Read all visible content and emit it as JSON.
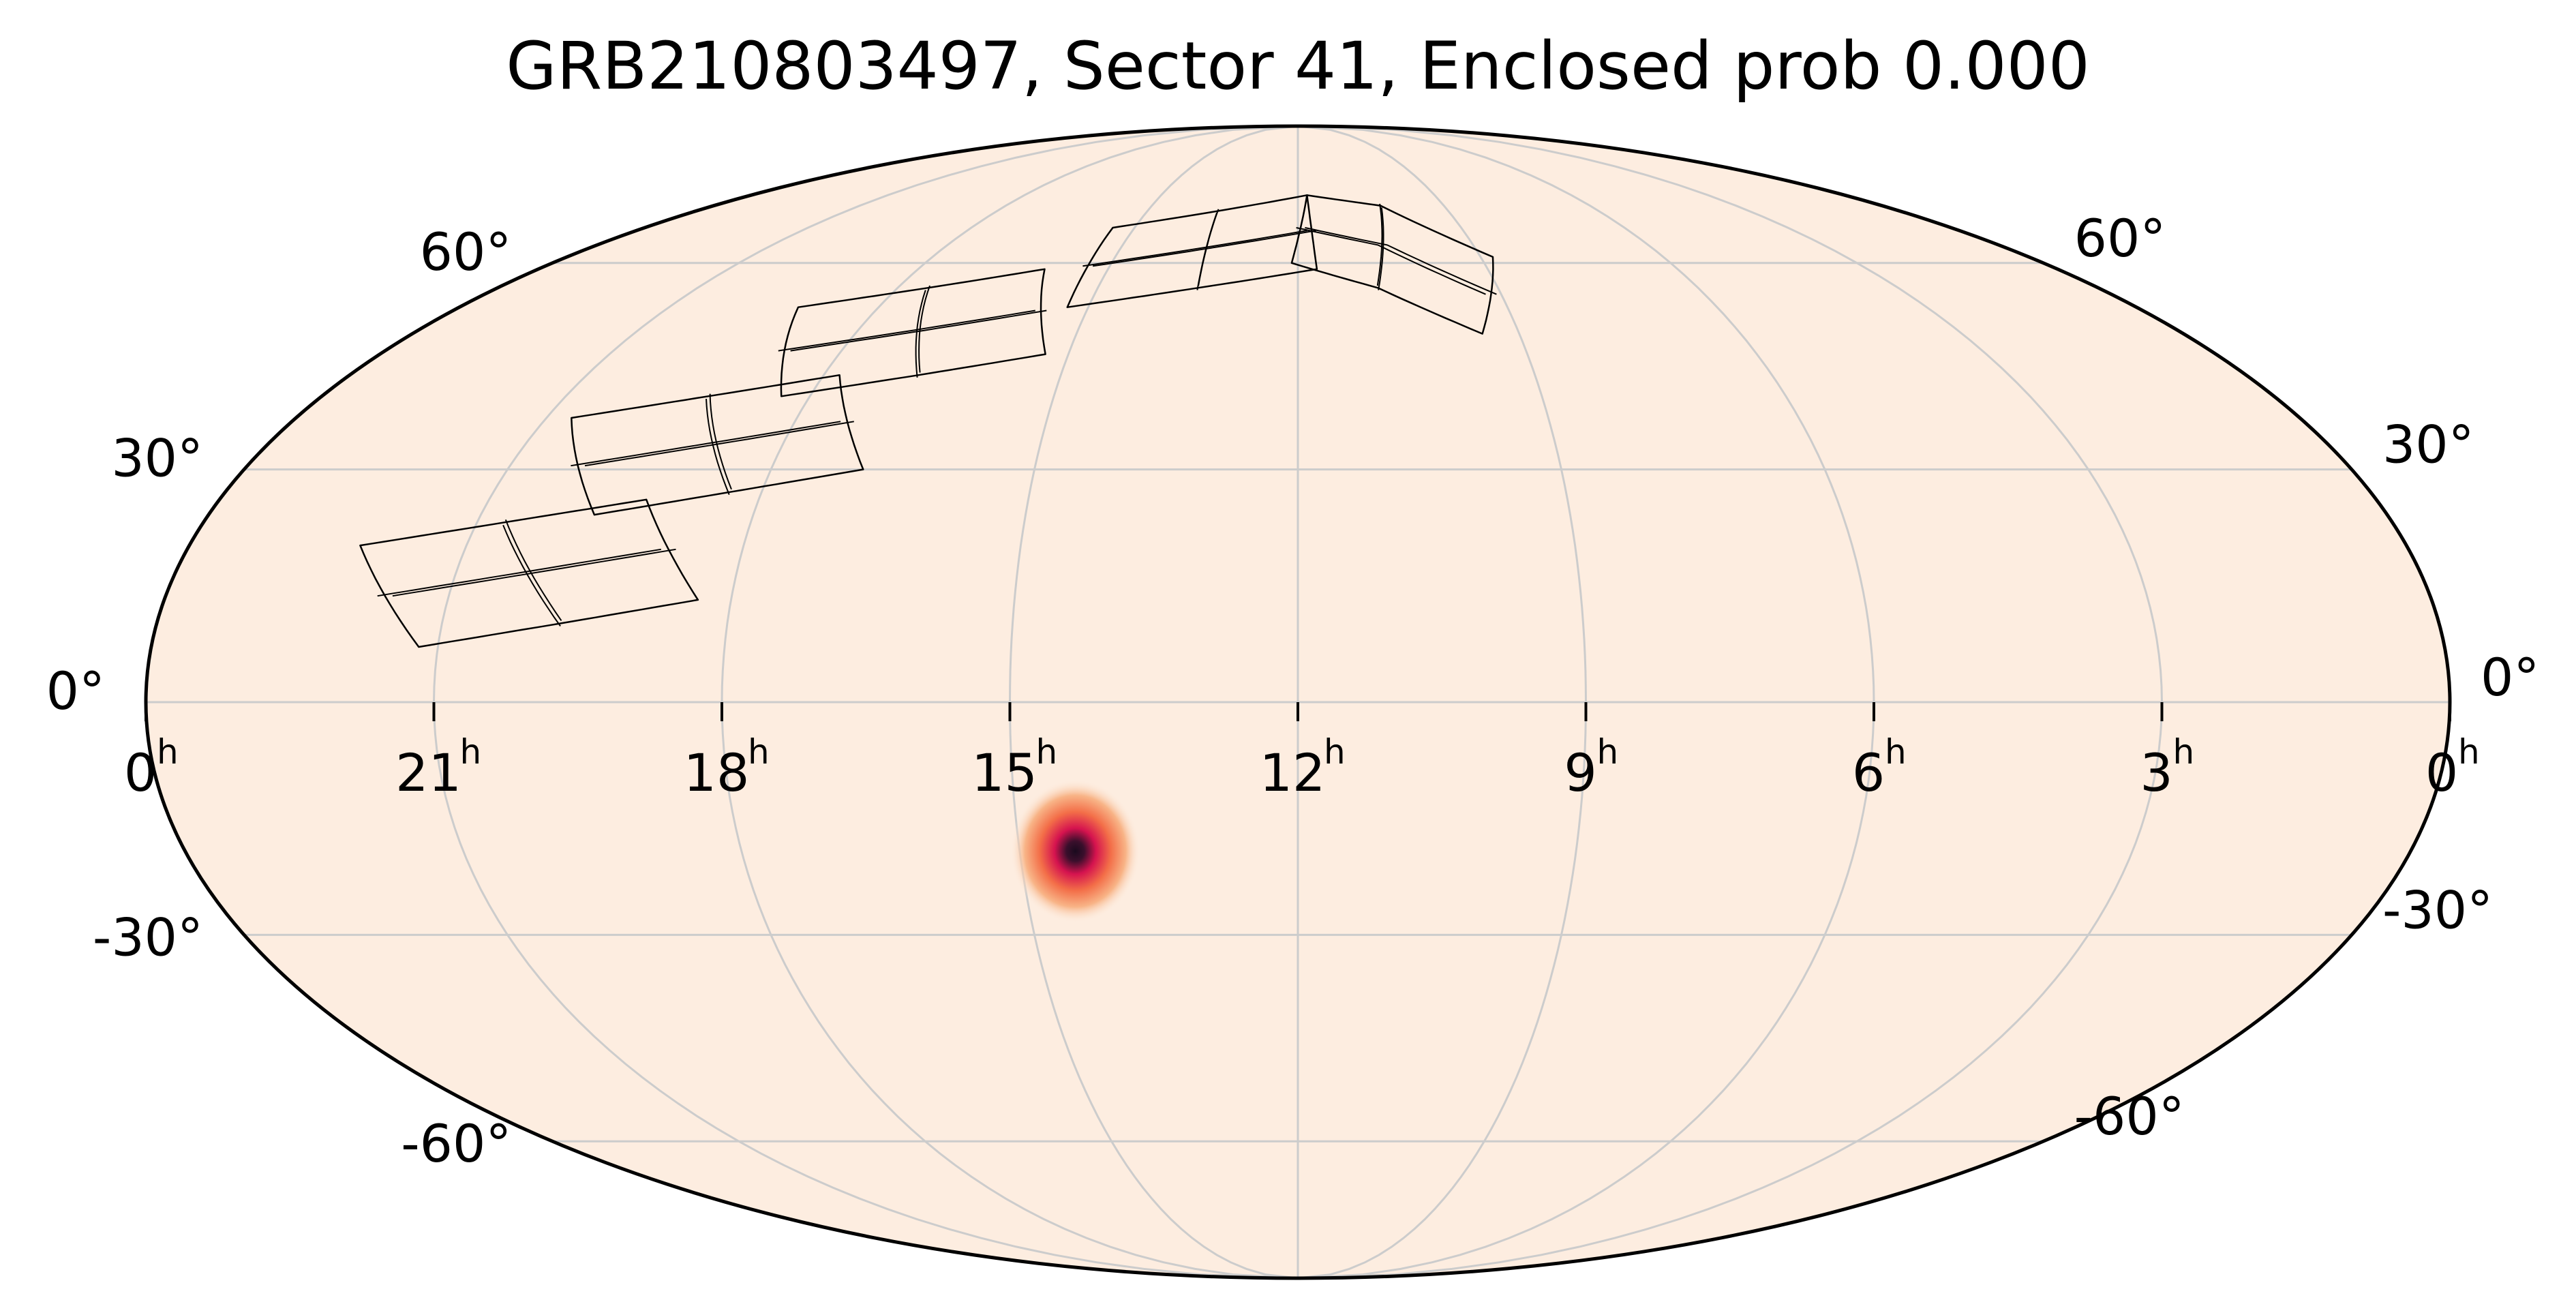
{
  "chart_data": {
    "type": "heatmap",
    "projection": "mollweide",
    "title": "GRB210803497, Sector 41, Enclosed prob 0.000",
    "ra_ticks": [
      {
        "hours": 24,
        "label": "0",
        "unit": "h"
      },
      {
        "hours": 21,
        "label": "21",
        "unit": "h"
      },
      {
        "hours": 18,
        "label": "18",
        "unit": "h"
      },
      {
        "hours": 15,
        "label": "15",
        "unit": "h"
      },
      {
        "hours": 12,
        "label": "12",
        "unit": "h"
      },
      {
        "hours": 9,
        "label": "9",
        "unit": "h"
      },
      {
        "hours": 6,
        "label": "6",
        "unit": "h"
      },
      {
        "hours": 3,
        "label": "3",
        "unit": "h"
      },
      {
        "hours": 0,
        "label": "0",
        "unit": "h"
      }
    ],
    "dec_ticks_left": [
      {
        "dec": 60,
        "label": "60°"
      },
      {
        "dec": 30,
        "label": "30°"
      },
      {
        "dec": 0,
        "label": "0°"
      },
      {
        "dec": -30,
        "label": "-30°"
      },
      {
        "dec": -60,
        "label": "-60°"
      }
    ],
    "dec_ticks_right": [
      {
        "dec": 60,
        "label": "60°"
      },
      {
        "dec": 30,
        "label": "30°"
      },
      {
        "dec": 0,
        "label": "0°"
      },
      {
        "dec": -30,
        "label": "-30°"
      },
      {
        "dec": -60,
        "label": "-60°"
      }
    ],
    "ra_direction": "increasing-leftward",
    "grid": true,
    "meridians_hours": [
      21,
      18,
      15,
      12,
      9,
      6,
      3
    ],
    "parallels_deg": [
      60,
      30,
      0,
      -30,
      -60
    ],
    "probability_peak": {
      "ra_hours": 14.4,
      "dec_deg": -19
    },
    "colormap": "rocket-like (light cream to red to near-black)",
    "colors": {
      "background": "#fdede0",
      "grid": "#cccccc",
      "frame": "#000000",
      "footprint_outline": "#000000",
      "peak_core": "#1a0a1e",
      "peak_mid": "#d5134f",
      "peak_halo": "#f7a06e"
    },
    "sector_footprints": [
      {
        "ra_hours": [
          22.15,
          20.7,
          19.25,
          18.35,
          19.75,
          21.2
        ],
        "dec_deg": [
          20,
          23,
          26,
          13,
          10,
          7
        ]
      },
      {
        "ra_hours": [
          20.7,
          19.25,
          17.8,
          16.95,
          18.35,
          19.75
        ],
        "dec_deg": [
          37,
          40,
          43,
          30,
          27,
          24
        ]
      },
      {
        "ra_hours": [
          19.15,
          17.55,
          16.0,
          15.3,
          16.8,
          18.35
        ],
        "dec_deg": [
          53,
          56,
          59,
          46,
          43,
          40
        ]
      },
      {
        "ra_hours": [
          15.4,
          13.6,
          11.8,
          11.7,
          13.5,
          15.3
        ],
        "dec_deg": [
          66,
          69,
          72,
          59,
          56,
          53
        ]
      },
      {
        "ra_hours": [
          11.8,
          10.3,
          8.8,
          9.5,
          10.8,
          12.1
        ],
        "dec_deg": [
          72,
          70,
          61,
          49,
          56,
          60
        ]
      }
    ]
  }
}
